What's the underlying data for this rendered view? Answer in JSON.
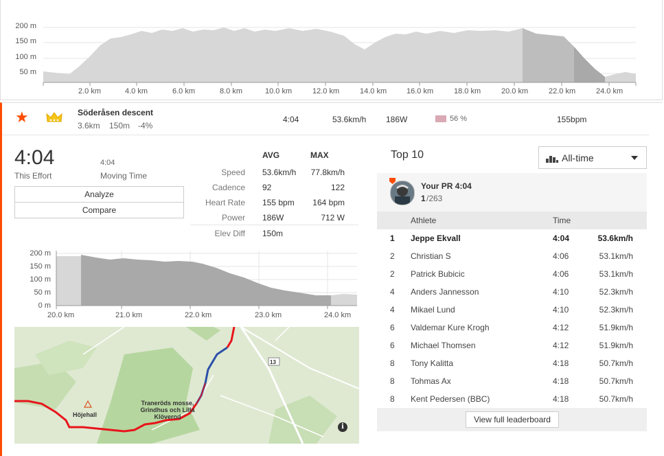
{
  "top_profile": {
    "y_ticks": [
      "200 m",
      "150 m",
      "100 m",
      "50 m"
    ],
    "x_ticks": [
      "2.0 km",
      "4.0 km",
      "6.0 km",
      "8.0 km",
      "10.0 km",
      "12.0 km",
      "14.0 km",
      "16.0 km",
      "18.0 km",
      "20.0 km",
      "22.0 km",
      "24.0 km"
    ]
  },
  "segment": {
    "name": "Söderåsen descent",
    "distance": "3.6km",
    "elevation": "150m",
    "grade": "-4%",
    "time": "4:04",
    "speed": "53.6km/h",
    "power": "186W",
    "hr_pct": "56 %",
    "hr": "155bpm"
  },
  "effort": {
    "time": "4:04",
    "time_label": "This Effort",
    "moving_time": "4:04",
    "moving_label": "Moving Time",
    "analyze_label": "Analyze",
    "compare_label": "Compare",
    "avg_header": "AVG",
    "max_header": "MAX",
    "stats": [
      {
        "label": "Speed",
        "avg": "53.6km/h",
        "max": "77.8km/h"
      },
      {
        "label": "Cadence",
        "avg": "92",
        "max": "122"
      },
      {
        "label": "Heart Rate",
        "avg": "155 bpm",
        "max": "164 bpm"
      },
      {
        "label": "Power",
        "avg": "186W",
        "max": "712 W"
      },
      {
        "label": "Elev Diff",
        "avg": "150m",
        "max": ""
      }
    ]
  },
  "seg_profile": {
    "y_ticks": [
      "200 m",
      "150 m",
      "100 m",
      "50 m",
      "0 m"
    ],
    "x_ticks": [
      "20.0 km",
      "21.0 km",
      "22.0 km",
      "23.0 km",
      "24.0 km"
    ]
  },
  "map": {
    "label_town": "Höjehall",
    "label_reserve": "Traneröds mosse, Grindhus och Lilla Klöverod",
    "road_number": "13",
    "info_icon": "i"
  },
  "leaderboard": {
    "title": "Top 10",
    "filter": "All-time",
    "pr_label": "Your PR 4:04",
    "pr_rank": "1",
    "pr_total": "/263",
    "col_athlete": "Athlete",
    "col_time": "Time",
    "rows": [
      {
        "rank": "1",
        "name": "Jeppe Ekvall",
        "time": "4:04",
        "speed": "53.6km/h"
      },
      {
        "rank": "2",
        "name": "Christian S",
        "time": "4:06",
        "speed": "53.1km/h"
      },
      {
        "rank": "2",
        "name": "Patrick Bubicic",
        "time": "4:06",
        "speed": "53.1km/h"
      },
      {
        "rank": "4",
        "name": "Anders Jannesson",
        "time": "4:10",
        "speed": "52.3km/h"
      },
      {
        "rank": "4",
        "name": "Mikael Lund",
        "time": "4:10",
        "speed": "52.3km/h"
      },
      {
        "rank": "6",
        "name": "Valdemar Kure Krogh",
        "time": "4:12",
        "speed": "51.9km/h"
      },
      {
        "rank": "6",
        "name": "Michael Thomsen",
        "time": "4:12",
        "speed": "51.9km/h"
      },
      {
        "rank": "8",
        "name": "Tony Kalitta",
        "time": "4:18",
        "speed": "50.7km/h"
      },
      {
        "rank": "8",
        "name": "Tohmas Ax",
        "time": "4:18",
        "speed": "50.7km/h"
      },
      {
        "rank": "8",
        "name": "Kent Pedersen (BBC)",
        "time": "4:18",
        "speed": "50.7km/h"
      }
    ],
    "view_full_label": "View full leaderboard"
  },
  "colors": {
    "accent": "#fc4c02",
    "crown": "#f5c518",
    "hr_swatch": "#d9a9b4",
    "route_red": "#e8141b",
    "route_blue": "#2b4fa8"
  }
}
